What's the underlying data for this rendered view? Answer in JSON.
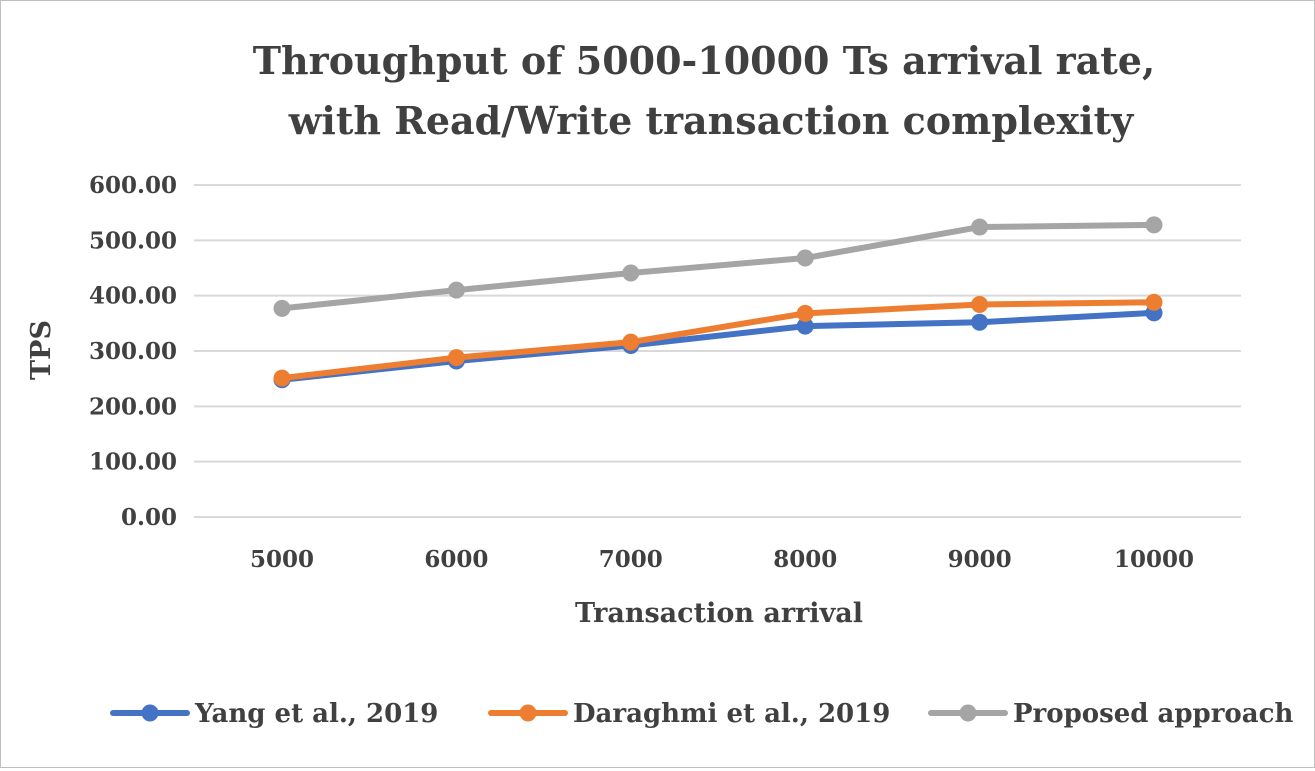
{
  "chart_data": {
    "type": "line",
    "title_lines": [
      "Throughput of 5000-10000  Ts arrival rate,",
      "with Read/Write transaction complexity"
    ],
    "xlabel": "Transaction arrival",
    "ylabel": "TPS",
    "categories": [
      "5000",
      "6000",
      "7000",
      "8000",
      "9000",
      "10000"
    ],
    "ylim": [
      0,
      600
    ],
    "yticks": [
      "0.00",
      "100.00",
      "200.00",
      "300.00",
      "400.00",
      "500.00",
      "600.00"
    ],
    "grid": true,
    "legend_position": "bottom",
    "series": [
      {
        "name": "Yang et al., 2019",
        "color": "#4472c4",
        "values": [
          248,
          282,
          310,
          345,
          352,
          369
        ]
      },
      {
        "name": "Daraghmi et al., 2019",
        "color": "#ed7d31",
        "values": [
          251,
          288,
          316,
          368,
          384,
          388
        ]
      },
      {
        "name": "Proposed approach",
        "color": "#a5a5a5",
        "values": [
          377,
          410,
          441,
          468,
          524,
          528
        ]
      }
    ]
  }
}
